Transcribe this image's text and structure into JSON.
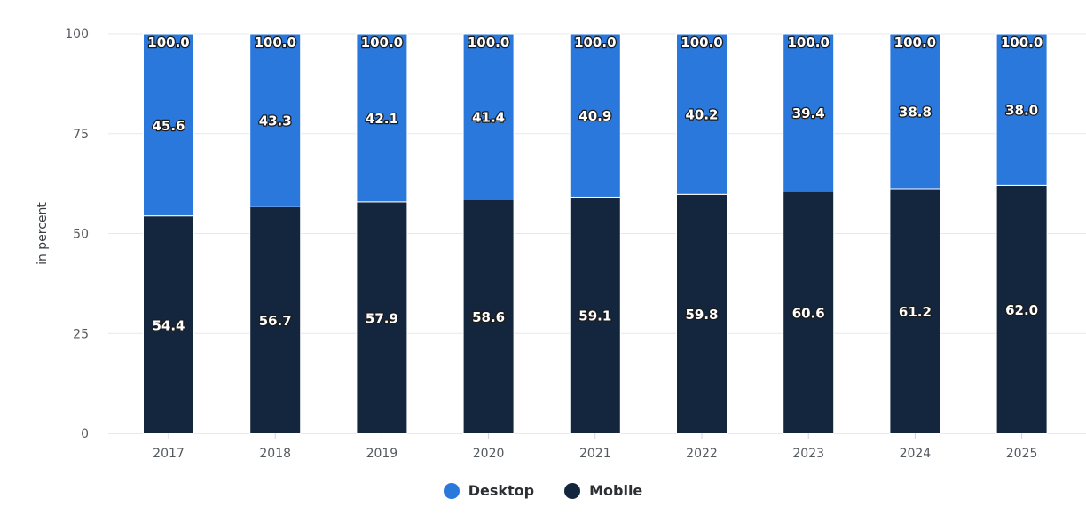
{
  "chart_data": {
    "type": "bar",
    "stacked": true,
    "categories": [
      "2017",
      "2018",
      "2019",
      "2020",
      "2021",
      "2022",
      "2023",
      "2024",
      "2025"
    ],
    "series": [
      {
        "name": "Mobile",
        "color": "#14263d",
        "values": [
          54.4,
          56.7,
          57.9,
          58.6,
          59.1,
          59.8,
          60.6,
          61.2,
          62.0
        ]
      },
      {
        "name": "Desktop",
        "color": "#2a78dc",
        "values": [
          45.6,
          43.3,
          42.1,
          41.4,
          40.9,
          40.2,
          39.4,
          38.8,
          38.0
        ]
      }
    ],
    "totals": [
      100.0,
      100.0,
      100.0,
      100.0,
      100.0,
      100.0,
      100.0,
      100.0,
      100.0
    ],
    "ylabel": "in percent",
    "ylim": [
      0,
      100
    ],
    "yticks": [
      0,
      25,
      50,
      75,
      100
    ],
    "grid": true,
    "legend_placement": "bottom-center"
  },
  "legend": {
    "items": [
      {
        "label": "Desktop",
        "color": "#2a78dc",
        "icon": "circle-marker-icon"
      },
      {
        "label": "Mobile",
        "color": "#14263d",
        "icon": "circle-marker-icon"
      }
    ]
  }
}
